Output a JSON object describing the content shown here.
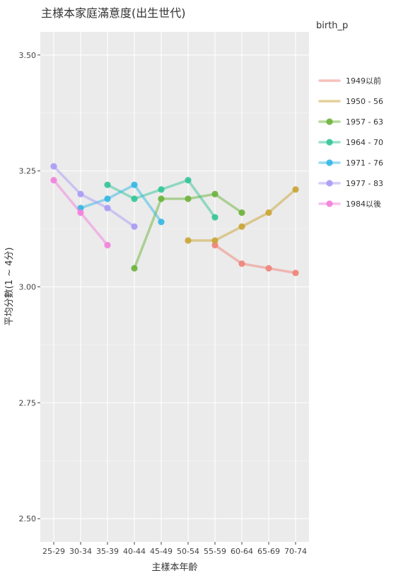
{
  "chart_data": {
    "type": "line",
    "title": "主様本家庭滿意度(出生世代)",
    "xlabel": "主樣本年齡",
    "ylabel": "平均分數(1 ~ 4分)",
    "legend_title": "birth_p",
    "legend_position": "right",
    "ylim": [
      2.45,
      3.55
    ],
    "yticks": [
      2.5,
      2.75,
      3.0,
      3.25,
      3.5
    ],
    "ytick_labels": [
      "2.50",
      "2.75",
      "3.00",
      "3.25",
      "3.50"
    ],
    "grid": true,
    "categories": [
      "25-29",
      "30-34",
      "35-39",
      "40-44",
      "45-49",
      "50-54",
      "55-59",
      "60-64",
      "65-69",
      "70-74"
    ],
    "series": [
      {
        "name": "1949以前",
        "color": "#F0837A",
        "values": [
          null,
          null,
          null,
          null,
          null,
          null,
          3.09,
          3.05,
          3.04,
          3.03
        ]
      },
      {
        "name": "1950 - 56",
        "color": "#C9A435",
        "values": [
          null,
          null,
          null,
          null,
          null,
          3.1,
          3.1,
          3.13,
          3.16,
          3.21
        ]
      },
      {
        "name": "1957 - 63",
        "color": "#6BB33A",
        "values": [
          null,
          null,
          null,
          3.04,
          3.19,
          3.19,
          3.2,
          3.16,
          null,
          null
        ]
      },
      {
        "name": "1964 - 70",
        "color": "#33C498",
        "values": [
          null,
          null,
          3.22,
          3.19,
          3.21,
          3.23,
          3.15,
          null,
          null,
          null
        ]
      },
      {
        "name": "1971 - 76",
        "color": "#33B7E6",
        "values": [
          null,
          3.17,
          3.19,
          3.22,
          3.14,
          null,
          null,
          null,
          null,
          null
        ]
      },
      {
        "name": "1977 - 83",
        "color": "#A99BF5",
        "values": [
          3.26,
          3.2,
          3.17,
          3.13,
          null,
          null,
          null,
          null,
          null,
          null
        ]
      },
      {
        "name": "1984以後",
        "color": "#F27FDB",
        "values": [
          3.23,
          3.16,
          3.09,
          null,
          null,
          null,
          null,
          null,
          null,
          null
        ]
      }
    ]
  }
}
